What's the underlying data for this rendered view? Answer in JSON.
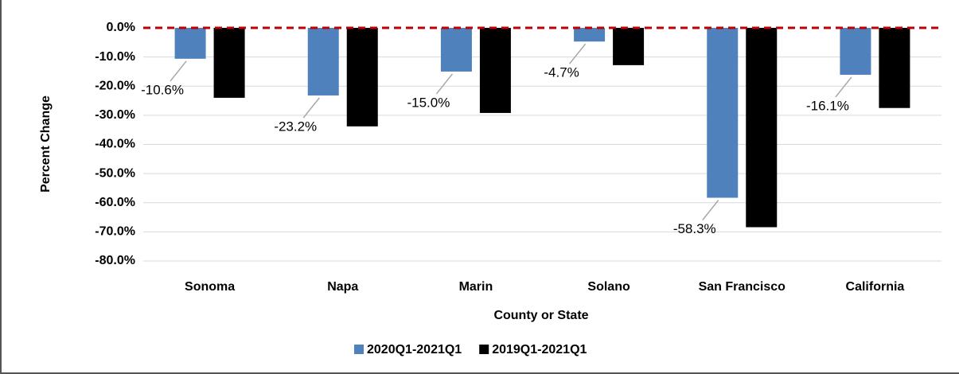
{
  "chart_data": {
    "type": "bar",
    "y_label": "Percent Change",
    "x_label": "County or State",
    "categories": [
      "Sonoma",
      "Napa",
      "Marin",
      "Solano",
      "San Francisco",
      "California"
    ],
    "series": [
      {
        "name": "2020Q1-2021Q1",
        "color": "#4f81bd",
        "values": [
          -10.6,
          -23.2,
          -15.0,
          -4.7,
          -58.3,
          -16.1
        ],
        "value_labels": [
          "-10.6%",
          "-23.2%",
          "-15.0%",
          "-4.7%",
          "-58.3%",
          "-16.1%"
        ]
      },
      {
        "name": "2019Q1-2021Q1",
        "color": "#000000",
        "values": [
          -24.0,
          -33.8,
          -29.2,
          -12.8,
          -68.4,
          -27.5
        ]
      }
    ],
    "ylim": [
      -80,
      0
    ],
    "yticks": [
      {
        "value": 0,
        "label": "0.0%"
      },
      {
        "value": -10,
        "label": "-10.0%"
      },
      {
        "value": -20,
        "label": "-20.0%"
      },
      {
        "value": -30,
        "label": "-30.0%"
      },
      {
        "value": -40,
        "label": "-40.0%"
      },
      {
        "value": -50,
        "label": "-50.0%"
      },
      {
        "value": -60,
        "label": "-60.0%"
      },
      {
        "value": -70,
        "label": "-70.0%"
      },
      {
        "value": -80,
        "label": "-80.0%"
      }
    ],
    "grid": true,
    "legend": "bottom"
  }
}
